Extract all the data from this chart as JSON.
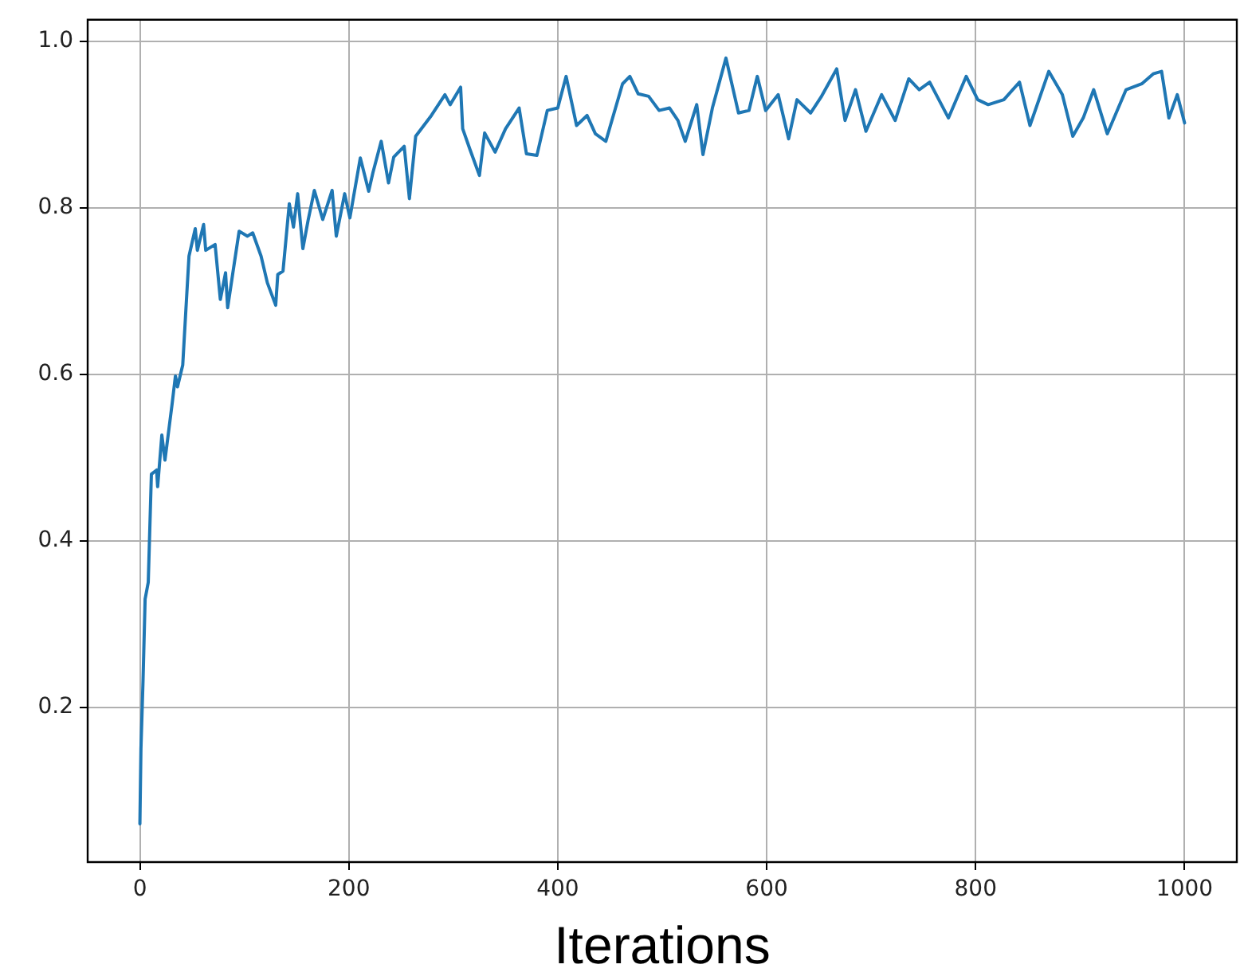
{
  "chart_data": {
    "type": "line",
    "xlabel": "Iterations",
    "x": [
      0,
      1,
      3,
      5,
      8,
      11,
      16,
      17,
      21,
      24,
      31,
      34,
      36,
      41,
      44,
      47,
      53,
      55,
      61,
      63,
      72,
      77,
      82,
      84,
      89,
      95,
      103,
      108,
      116,
      122,
      130,
      132,
      137,
      143,
      147,
      151,
      156,
      161,
      167,
      175,
      184,
      188,
      196,
      201,
      211,
      219,
      223,
      231,
      238,
      243,
      253,
      258,
      264,
      279,
      292,
      297,
      307,
      309,
      316,
      325,
      330,
      340,
      350,
      363,
      370,
      380,
      390,
      400,
      408,
      418,
      428,
      436,
      446,
      462,
      469,
      477,
      487,
      497,
      507,
      515,
      522,
      533,
      539,
      548,
      561,
      573,
      583,
      591,
      599,
      611,
      621,
      629,
      642,
      652,
      667,
      675,
      685,
      695,
      710,
      723,
      736,
      746,
      756,
      774,
      791,
      802,
      812,
      827,
      842,
      852,
      870,
      883,
      893,
      903,
      913,
      926,
      944,
      959,
      970,
      978,
      985,
      993,
      1000
    ],
    "series": [
      {
        "color": "#1f77b4",
        "values": [
          0.06,
          0.15,
          0.232,
          0.33,
          0.35,
          0.48,
          0.485,
          0.465,
          0.527,
          0.497,
          0.566,
          0.598,
          0.585,
          0.611,
          0.677,
          0.742,
          0.775,
          0.749,
          0.78,
          0.749,
          0.756,
          0.69,
          0.722,
          0.68,
          0.722,
          0.772,
          0.766,
          0.77,
          0.742,
          0.71,
          0.683,
          0.72,
          0.724,
          0.805,
          0.777,
          0.817,
          0.751,
          0.785,
          0.821,
          0.786,
          0.821,
          0.766,
          0.817,
          0.788,
          0.86,
          0.82,
          0.842,
          0.88,
          0.83,
          0.861,
          0.874,
          0.811,
          0.886,
          0.911,
          0.936,
          0.924,
          0.945,
          0.895,
          0.87,
          0.839,
          0.89,
          0.867,
          0.895,
          0.92,
          0.865,
          0.863,
          0.917,
          0.92,
          0.958,
          0.899,
          0.911,
          0.889,
          0.88,
          0.949,
          0.958,
          0.937,
          0.934,
          0.917,
          0.92,
          0.905,
          0.88,
          0.924,
          0.864,
          0.92,
          0.98,
          0.914,
          0.917,
          0.958,
          0.917,
          0.936,
          0.883,
          0.93,
          0.914,
          0.933,
          0.967,
          0.905,
          0.942,
          0.892,
          0.936,
          0.905,
          0.955,
          0.942,
          0.951,
          0.908,
          0.958,
          0.93,
          0.924,
          0.93,
          0.951,
          0.899,
          0.964,
          0.936,
          0.886,
          0.908,
          0.942,
          0.889,
          0.942,
          0.949,
          0.961,
          0.964,
          0.908,
          0.936,
          0.902
        ]
      }
    ],
    "xlim": [
      -50,
      1050
    ],
    "xticks": [
      0,
      200,
      400,
      600,
      800,
      1000
    ],
    "ylim": [
      0.014,
      1.026
    ],
    "yticks": [
      0.2,
      0.4,
      0.6,
      0.8,
      {
        "value": 1,
        "label": "1.0"
      }
    ],
    "grid": true,
    "legend": false,
    "marker": "none",
    "line_style": "solid"
  }
}
